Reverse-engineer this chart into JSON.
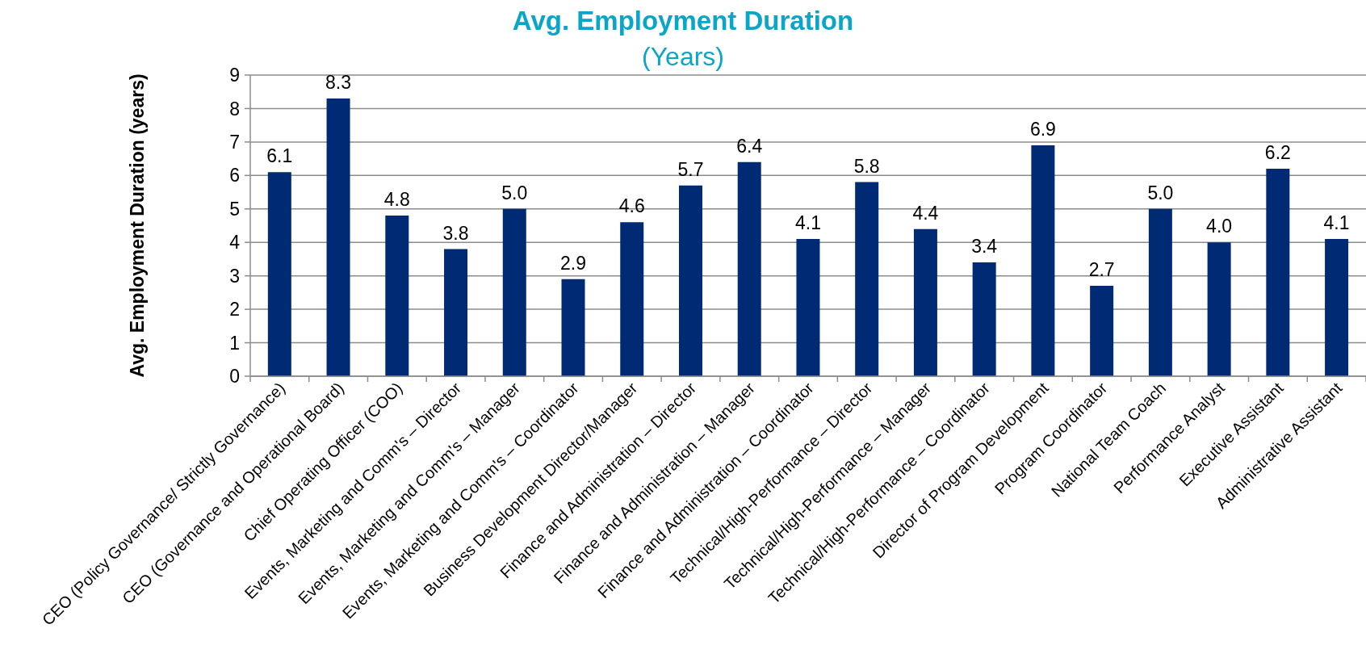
{
  "chart_data": {
    "type": "bar",
    "title": "Avg. Employment Duration",
    "subtitle": "(Years)",
    "ylabel": "Avg. Employment Duration (years)",
    "categories": [
      "CEO (Policy Governance/ Strictly Governance)",
      "CEO (Governance and Operational Board)",
      "Chief Operating Officer (COO)",
      "Events, Marketing and Comm's – Director",
      "Events, Marketing and Comm's – Manager",
      "Events, Marketing and Comm's – Coordinator",
      "Business Development Director/Manager",
      "Finance and Administration – Director",
      "Finance and Administration – Manager",
      "Finance and Administration – Coordinator",
      "Technical/High-Performance – Director",
      "Technical/High-Performance – Manager",
      "Technical/High-Performance – Coordinator",
      "Director of Program Development",
      "Program Coordinator",
      "National Team Coach",
      "Performance Analyst",
      "Executive Assistant",
      "Administrative Assistant"
    ],
    "values": [
      6.1,
      8.3,
      4.8,
      3.8,
      5.0,
      2.9,
      4.6,
      5.7,
      6.4,
      4.1,
      5.8,
      4.4,
      3.4,
      6.9,
      2.7,
      5.0,
      4.0,
      6.2,
      4.1
    ],
    "value_labels": [
      "6.1",
      "8.3",
      "4.8",
      "3.8",
      "5.0",
      "2.9",
      "4.6",
      "5.7",
      "6.4",
      "4.1",
      "5.8",
      "4.4",
      "3.4",
      "6.9",
      "2.7",
      "5.0",
      "4.0",
      "6.2",
      "4.1"
    ],
    "color": "#002b74",
    "ylim": [
      0,
      9
    ],
    "yticks": [
      0,
      1,
      2,
      3,
      4,
      5,
      6,
      7,
      8,
      9
    ],
    "grid": "y"
  }
}
